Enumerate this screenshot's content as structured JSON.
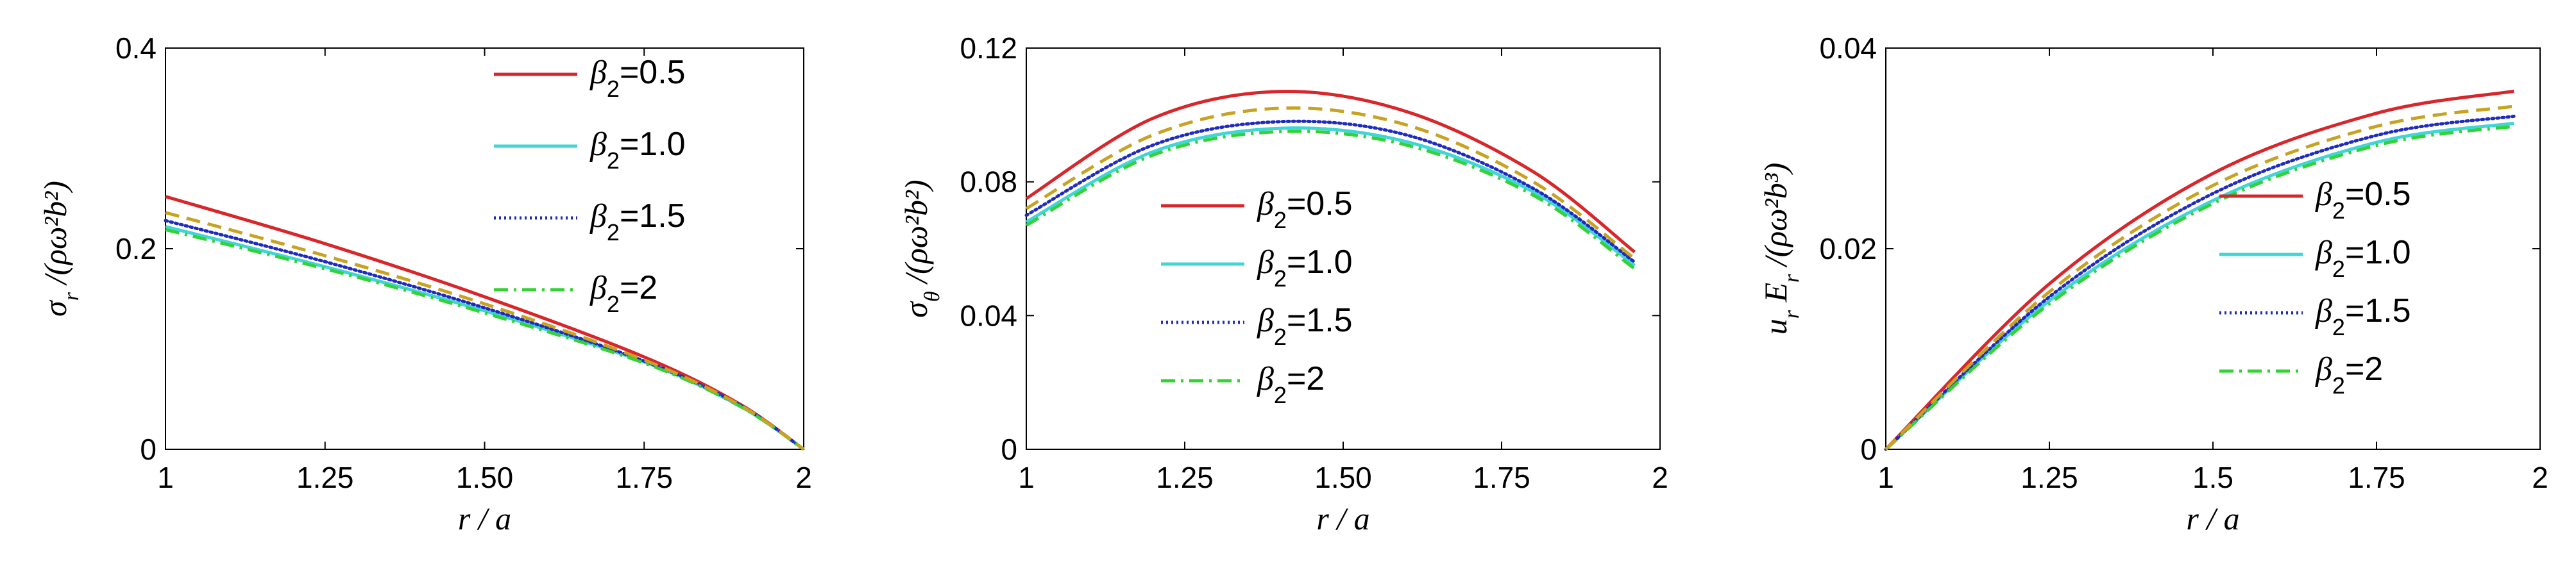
{
  "chart_data": [
    {
      "type": "line",
      "xlabel": "r / a",
      "ylabel": "σ_r /(ρω²b²)",
      "xlim": [
        1,
        2
      ],
      "ylim": [
        0,
        0.4
      ],
      "xticks": [
        "1",
        "1.25",
        "1.50",
        "1.75",
        "2"
      ],
      "yticks": [
        "0",
        "0.2",
        "0.4"
      ],
      "legend_position": "top-right",
      "x": [
        1.0,
        1.25,
        1.5,
        1.75,
        1.9,
        2.0
      ],
      "series": [
        {
          "name": "β₂=0.5",
          "color": "#d8262b",
          "style": "solid",
          "values": [
            0.252,
            0.205,
            0.152,
            0.092,
            0.045,
            0.0
          ]
        },
        {
          "name": "β₂=1.0",
          "color": "#3fd6d6",
          "style": "solid",
          "values": [
            0.222,
            0.182,
            0.138,
            0.087,
            0.043,
            0.0
          ]
        },
        {
          "name": "β₂=1.5",
          "color": "#1f2bbf",
          "style": "dotted",
          "values": [
            0.228,
            0.187,
            0.141,
            0.088,
            0.044,
            0.0
          ]
        },
        {
          "name": "β₂=2",
          "color": "#34d234",
          "style": "dashdot",
          "values": [
            0.219,
            0.18,
            0.136,
            0.086,
            0.043,
            0.0
          ]
        },
        {
          "name": "",
          "color": "#c8a321",
          "style": "dashed",
          "values": [
            0.236,
            0.193,
            0.145,
            0.089,
            0.044,
            0.0
          ]
        }
      ]
    },
    {
      "type": "line",
      "xlabel": "r / a",
      "ylabel": "σ_θ /(ρω²b²)",
      "xlim": [
        1,
        2
      ],
      "ylim": [
        0,
        0.12
      ],
      "xticks": [
        "1",
        "1.25",
        "1.50",
        "1.75",
        "2"
      ],
      "yticks": [
        "0",
        "0.04",
        "0.08",
        "0.12"
      ],
      "legend_position": "bottom-center",
      "x": [
        1.0,
        1.2,
        1.4,
        1.6,
        1.8,
        1.96
      ],
      "series": [
        {
          "name": "β₂=0.5",
          "color": "#d8262b",
          "style": "solid",
          "values": [
            0.075,
            0.099,
            0.107,
            0.101,
            0.083,
            0.059
          ]
        },
        {
          "name": "β₂=1.0",
          "color": "#3fd6d6",
          "style": "solid",
          "values": [
            0.068,
            0.089,
            0.096,
            0.092,
            0.077,
            0.055
          ]
        },
        {
          "name": "β₂=1.5",
          "color": "#1f2bbf",
          "style": "dotted",
          "values": [
            0.07,
            0.091,
            0.098,
            0.094,
            0.078,
            0.056
          ]
        },
        {
          "name": "β₂=2",
          "color": "#34d234",
          "style": "dashdot",
          "values": [
            0.067,
            0.088,
            0.095,
            0.091,
            0.076,
            0.054
          ]
        },
        {
          "name": "",
          "color": "#c8a321",
          "style": "dashed",
          "values": [
            0.072,
            0.094,
            0.102,
            0.097,
            0.08,
            0.057
          ]
        }
      ]
    },
    {
      "type": "line",
      "xlabel": "r / a",
      "ylabel": "u_r E_r /(ρω²b³)",
      "xlim": [
        1,
        2
      ],
      "ylim": [
        0,
        0.04
      ],
      "xticks": [
        "1",
        "1.25",
        "1.5",
        "1.75",
        "2"
      ],
      "yticks": [
        "0",
        "0.02",
        "0.04"
      ],
      "legend_position": "right",
      "x": [
        1.0,
        1.25,
        1.5,
        1.75,
        1.96
      ],
      "series": [
        {
          "name": "β₂=0.5",
          "color": "#d8262b",
          "style": "solid",
          "values": [
            0.0,
            0.0165,
            0.0275,
            0.0335,
            0.0357
          ]
        },
        {
          "name": "β₂=1.0",
          "color": "#3fd6d6",
          "style": "solid",
          "values": [
            0.0,
            0.0148,
            0.0248,
            0.0306,
            0.0325
          ]
        },
        {
          "name": "β₂=1.5",
          "color": "#1f2bbf",
          "style": "dotted",
          "values": [
            0.0,
            0.0152,
            0.0255,
            0.0313,
            0.0332
          ]
        },
        {
          "name": "β₂=2",
          "color": "#34d234",
          "style": "dashdot",
          "values": [
            0.0,
            0.0145,
            0.0245,
            0.0303,
            0.0322
          ]
        },
        {
          "name": "",
          "color": "#c8a321",
          "style": "dashed",
          "values": [
            0.0,
            0.0157,
            0.0263,
            0.0322,
            0.0342
          ]
        }
      ]
    }
  ]
}
